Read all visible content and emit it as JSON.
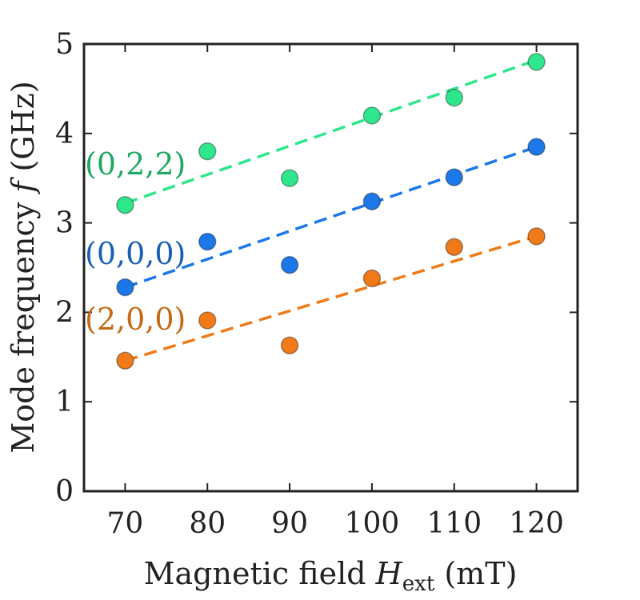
{
  "chart_data": {
    "type": "scatter",
    "xlabel": {
      "prefix": "Magnetic field ",
      "symbol": "H",
      "subscript": "ext",
      "unit": " (mT)"
    },
    "ylabel": {
      "prefix": "Mode frequency ",
      "symbol": "f",
      "unit": " (GHz)"
    },
    "xlim": [
      65,
      125
    ],
    "ylim": [
      0,
      5
    ],
    "xticks": [
      70,
      80,
      90,
      100,
      110,
      120
    ],
    "yticks": [
      0,
      1,
      2,
      3,
      4,
      5
    ],
    "grid": false,
    "legend": "inline labels at left",
    "series": [
      {
        "name": "(0,2,2)",
        "color": "#2ee68c",
        "label_color": "#1ea860",
        "x": [
          70,
          80,
          90,
          100,
          110,
          120
        ],
        "y": [
          3.2,
          3.8,
          3.5,
          4.2,
          4.4,
          4.8
        ],
        "fit": [
          [
            70,
            3.22
          ],
          [
            120,
            4.82
          ]
        ]
      },
      {
        "name": "(0,0,0)",
        "color": "#1c77e8",
        "label_color": "#1a5fb4",
        "x": [
          70,
          80,
          90,
          100,
          110,
          120
        ],
        "y": [
          2.28,
          2.79,
          2.53,
          3.24,
          3.51,
          3.85
        ],
        "fit": [
          [
            70,
            2.28
          ],
          [
            120,
            3.85
          ]
        ]
      },
      {
        "name": "(2,0,0)",
        "color": "#f07a18",
        "label_color": "#c46a14",
        "x": [
          70,
          80,
          90,
          100,
          110,
          120
        ],
        "y": [
          1.46,
          1.91,
          1.63,
          2.38,
          2.73,
          2.85
        ],
        "fit": [
          [
            70,
            1.46
          ],
          [
            120,
            2.85
          ]
        ]
      }
    ]
  }
}
